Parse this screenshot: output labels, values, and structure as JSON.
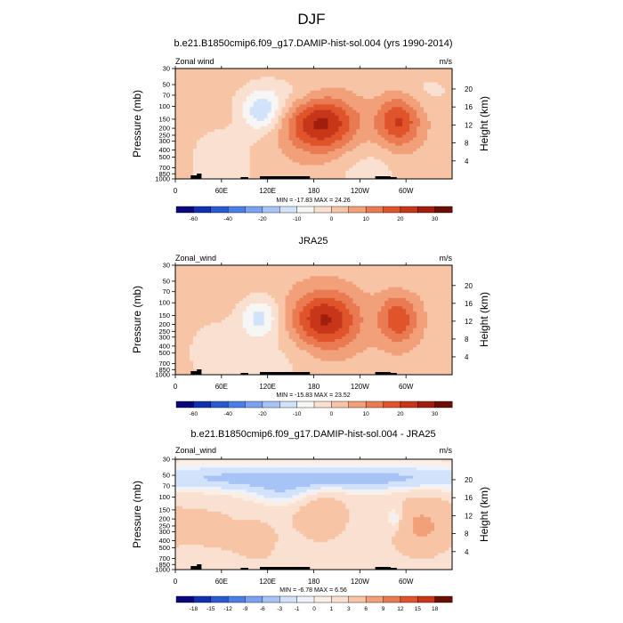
{
  "figure": {
    "title": "DJF"
  },
  "panels": [
    {
      "title": "b.e21.B1850cmip6.f09_g17.DAMIP-hist-sol.004 (yrs 1990-2014)",
      "left_label": "Zonal wind",
      "right_label": "m/s",
      "stats": "MIN = -17.83  MAX =  24.26",
      "colorbar_labels": [
        "-60",
        "-40",
        "-20",
        "-10",
        "0",
        "10",
        "20",
        "30"
      ]
    },
    {
      "title": "JRA25",
      "left_label": "Zonal_wind",
      "right_label": "m/s",
      "stats": "MIN = -15.83  MAX =  23.52",
      "colorbar_labels": [
        "-60",
        "-40",
        "-20",
        "-10",
        "0",
        "10",
        "20",
        "30"
      ]
    },
    {
      "title": "b.e21.B1850cmip6.f09_g17.DAMIP-hist-sol.004 - JRA25",
      "left_label": "Zonal_wind",
      "right_label": "m/s",
      "stats": "MIN =  -6.78  MAX =  6.56",
      "colorbar_labels": [
        "-18",
        "-15",
        "-12",
        "-9",
        "-6",
        "-3",
        "-1",
        "0",
        "1",
        "3",
        "6",
        "9",
        "12",
        "15",
        "18"
      ]
    }
  ],
  "axes": {
    "y_left_label": "Pressure (mb)",
    "y_right_label": "Height (km)",
    "x_tick_labels": [
      "0",
      "60E",
      "120E",
      "180",
      "120W",
      "60W"
    ],
    "y_left_ticks": [
      "30",
      "50",
      "70",
      "100",
      "150",
      "200",
      "250",
      "300",
      "400",
      "500",
      "700",
      "850",
      "1000"
    ],
    "y_right_ticks": [
      "20",
      "16",
      "12",
      "8",
      "4"
    ]
  },
  "colors": {
    "full_field_scale": [
      "#08087a",
      "#1030b0",
      "#2a5ad0",
      "#4a7ee8",
      "#7aa2f0",
      "#a8c4f6",
      "#d2e2fa",
      "#f6f6f4",
      "#fae0d0",
      "#f7c4a6",
      "#f2a07a",
      "#ea7a52",
      "#e0542c",
      "#c8361a",
      "#a01e0e",
      "#6a0e06"
    ],
    "diff_scale": [
      "#08087a",
      "#1030b0",
      "#2a5ad0",
      "#4a7ee8",
      "#7aa2f0",
      "#a8c4f6",
      "#d2e2fa",
      "#eef2fa",
      "#fbeee4",
      "#fae0d0",
      "#f7c4a6",
      "#f2a07a",
      "#ea7a52",
      "#e0542c",
      "#c8361a",
      "#6a0e06"
    ]
  },
  "chart_data": [
    {
      "type": "heatmap",
      "title": "b.e21.B1850cmip6.f09_g17.DAMIP-hist-sol.004 (yrs 1990-2014)",
      "variable": "Zonal wind",
      "units": "m/s",
      "xlabel": "",
      "ylabel": "Pressure (mb)",
      "ylabel_right": "Height (km)",
      "x_ticks": [
        "0",
        "60E",
        "120E",
        "180",
        "120W",
        "60W"
      ],
      "x_range_deg": [
        0,
        360
      ],
      "y_range_mb": [
        30,
        1000
      ],
      "y_scale": "log",
      "levels": [
        -60,
        -50,
        -40,
        -30,
        -20,
        -15,
        -10,
        -5,
        0,
        5,
        10,
        15,
        20,
        25,
        30
      ],
      "min": -17.83,
      "max": 24.26,
      "features": [
        {
          "lon": 190,
          "p": 170,
          "value": 24,
          "lon_width": 32,
          "log_p_width": 0.28
        },
        {
          "lon": 290,
          "p": 160,
          "value": 18,
          "lon_width": 20,
          "log_p_width": 0.26
        },
        {
          "lon": 112,
          "p": 120,
          "value": -15,
          "lon_width": 18,
          "log_p_width": 0.2
        },
        {
          "lon": 60,
          "p": 600,
          "value": -7,
          "lon_width": 30,
          "log_p_width": 0.35
        },
        {
          "lon": 250,
          "p": 750,
          "value": -5,
          "lon_width": 35,
          "log_p_width": 0.3
        },
        {
          "lon": 150,
          "p": 70,
          "value": -6,
          "lon_width": 45,
          "log_p_width": 0.2
        },
        {
          "lon": 320,
          "p": 60,
          "value": -4,
          "lon_width": 40,
          "log_p_width": 0.2
        }
      ],
      "background": 3
    },
    {
      "type": "heatmap",
      "title": "JRA25",
      "variable": "Zonal_wind",
      "units": "m/s",
      "xlabel": "",
      "ylabel": "Pressure (mb)",
      "ylabel_right": "Height (km)",
      "x_ticks": [
        "0",
        "60E",
        "120E",
        "180",
        "120W",
        "60W"
      ],
      "x_range_deg": [
        0,
        360
      ],
      "y_range_mb": [
        30,
        1000
      ],
      "y_scale": "log",
      "levels": [
        -60,
        -50,
        -40,
        -30,
        -20,
        -15,
        -10,
        -5,
        0,
        5,
        10,
        15,
        20,
        25,
        30
      ],
      "min": -15.83,
      "max": 23.52,
      "features": [
        {
          "lon": 195,
          "p": 175,
          "value": 23,
          "lon_width": 30,
          "log_p_width": 0.28
        },
        {
          "lon": 290,
          "p": 170,
          "value": 16,
          "lon_width": 18,
          "log_p_width": 0.24
        },
        {
          "lon": 110,
          "p": 160,
          "value": -14,
          "lon_width": 18,
          "log_p_width": 0.2
        },
        {
          "lon": 55,
          "p": 500,
          "value": -6,
          "lon_width": 30,
          "log_p_width": 0.35
        },
        {
          "lon": 140,
          "p": 600,
          "value": -4,
          "lon_width": 35,
          "log_p_width": 0.3
        },
        {
          "lon": 320,
          "p": 40,
          "value": -3,
          "lon_width": 40,
          "log_p_width": 0.15
        }
      ],
      "background": 3
    },
    {
      "type": "heatmap",
      "title": "b.e21.B1850cmip6.f09_g17.DAMIP-hist-sol.004 - JRA25",
      "variable": "Zonal_wind",
      "units": "m/s",
      "xlabel": "",
      "ylabel": "Pressure (mb)",
      "ylabel_right": "Height (km)",
      "x_ticks": [
        "0",
        "60E",
        "120E",
        "180",
        "120W",
        "60W"
      ],
      "x_range_deg": [
        0,
        360
      ],
      "y_range_mb": [
        30,
        1000
      ],
      "y_scale": "log",
      "levels": [
        -18,
        -15,
        -12,
        -9,
        -6,
        -3,
        -1,
        0,
        1,
        3,
        6,
        9,
        12,
        15,
        18
      ],
      "min": -6.78,
      "max": 6.56,
      "features": [
        {
          "lon": 180,
          "p": 55,
          "value": -6,
          "lon_width": 200,
          "log_p_width": 0.12
        },
        {
          "lon": 140,
          "p": 90,
          "value": -3,
          "lon_width": 30,
          "log_p_width": 0.12
        },
        {
          "lon": 190,
          "p": 180,
          "value": 4,
          "lon_width": 25,
          "log_p_width": 0.25
        },
        {
          "lon": 320,
          "p": 250,
          "value": 5,
          "lon_width": 28,
          "log_p_width": 0.3
        },
        {
          "lon": 40,
          "p": 350,
          "value": 3,
          "lon_width": 30,
          "log_p_width": 0.3
        },
        {
          "lon": 110,
          "p": 400,
          "value": 2,
          "lon_width": 25,
          "log_p_width": 0.3
        },
        {
          "lon": 285,
          "p": 200,
          "value": -4,
          "lon_width": 6,
          "log_p_width": 0.12
        },
        {
          "lon": 30,
          "p": 650,
          "value": -2,
          "lon_width": 25,
          "log_p_width": 0.15
        }
      ],
      "background": 1.5
    }
  ]
}
